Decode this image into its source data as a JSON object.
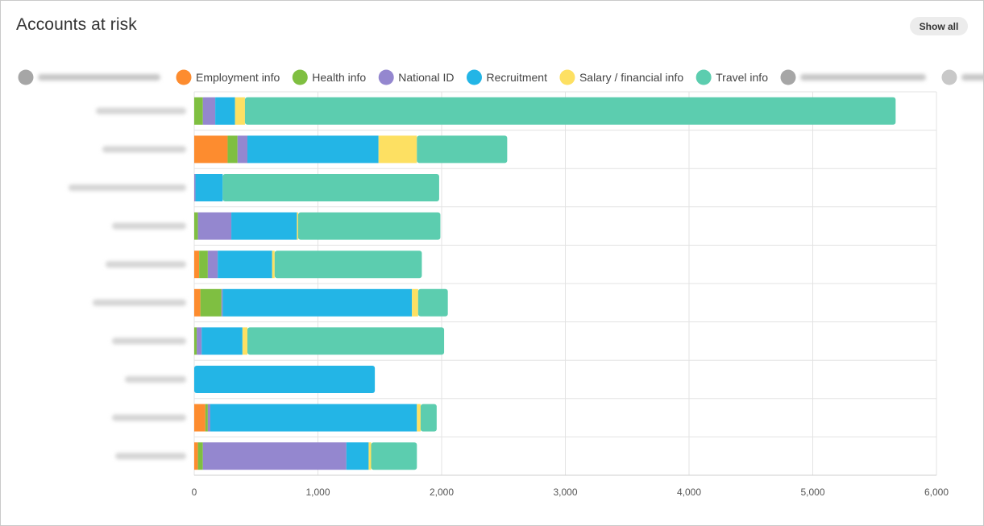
{
  "page": {
    "title": "Accounts at risk",
    "show_all_label": "Show all"
  },
  "chart_data": {
    "type": "bar",
    "orientation": "horizontal",
    "stacked": true,
    "categories": [
      "",
      "",
      "",
      "",
      "",
      "",
      "",
      "",
      "",
      ""
    ],
    "xlim": [
      0,
      6000
    ],
    "xticks": [
      0,
      1000,
      2000,
      3000,
      4000,
      5000,
      6000
    ],
    "xtick_labels": [
      "0",
      "1,000",
      "2,000",
      "3,000",
      "4,000",
      "5,000",
      "6,000"
    ],
    "grid": true,
    "legend_position": "top",
    "series": [
      {
        "name": "",
        "color": "#a6a6a6",
        "legend_blurred": true,
        "values": [
          0,
          0,
          0,
          0,
          0,
          0,
          0,
          0,
          0,
          0
        ]
      },
      {
        "name": "Employment info",
        "color": "#fd8c2f",
        "values": [
          0,
          270,
          0,
          0,
          40,
          50,
          0,
          0,
          90,
          30
        ]
      },
      {
        "name": "Health info",
        "color": "#7fbf41",
        "values": [
          70,
          80,
          0,
          30,
          70,
          170,
          20,
          0,
          20,
          40
        ]
      },
      {
        "name": "National ID",
        "color": "#9487cf",
        "values": [
          100,
          80,
          10,
          270,
          80,
          10,
          40,
          0,
          20,
          1160
        ]
      },
      {
        "name": "Recruitment",
        "color": "#23b5e6",
        "values": [
          160,
          1060,
          220,
          530,
          440,
          1530,
          330,
          1460,
          1670,
          180
        ]
      },
      {
        "name": "Salary / financial info",
        "color": "#fde062",
        "values": [
          80,
          310,
          0,
          10,
          20,
          50,
          40,
          0,
          30,
          20
        ]
      },
      {
        "name": "Travel info",
        "color": "#5ccdaf",
        "values": [
          5260,
          730,
          1750,
          1150,
          1190,
          240,
          1590,
          0,
          130,
          370
        ]
      },
      {
        "name": "",
        "color": "#a6a6a6",
        "legend_blurred": true,
        "values": [
          0,
          0,
          0,
          0,
          0,
          0,
          0,
          0,
          0,
          0
        ]
      },
      {
        "name": "",
        "color": "#c8c8c8",
        "legend_blurred": true,
        "values": [
          0,
          0,
          0,
          0,
          0,
          0,
          0,
          0,
          0,
          0
        ]
      }
    ]
  }
}
